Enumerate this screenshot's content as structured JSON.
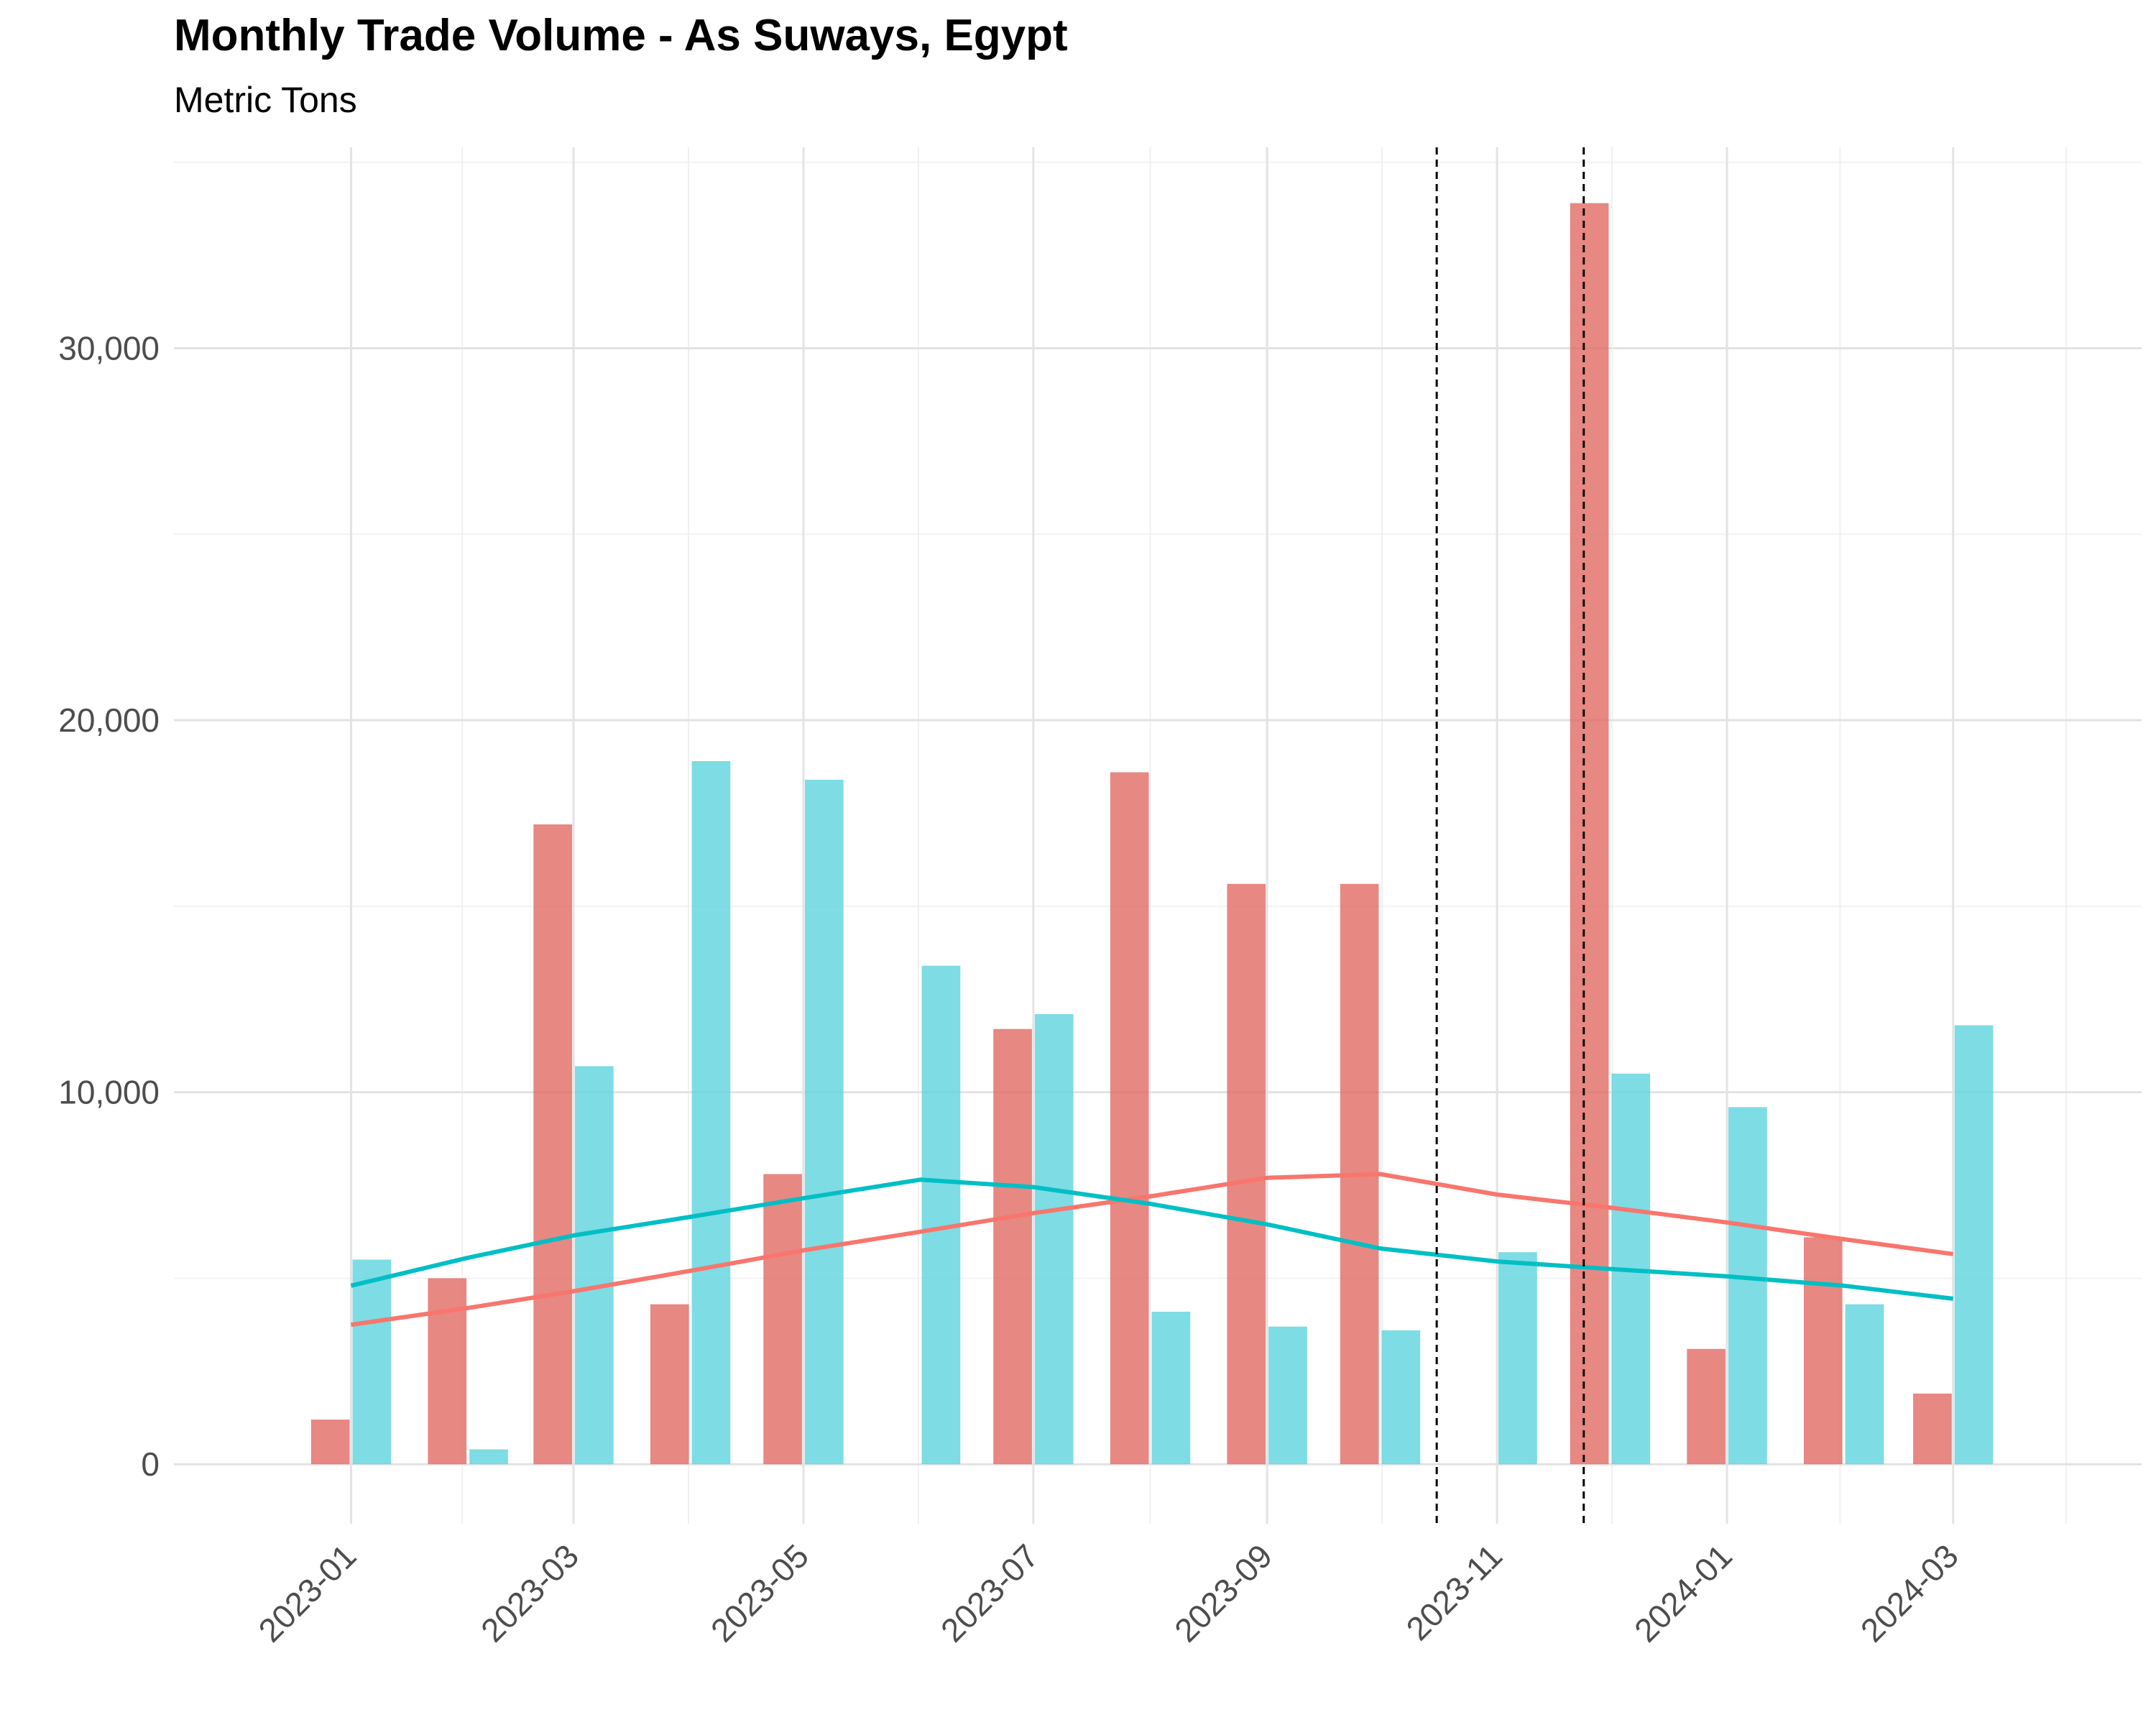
{
  "chart_data": {
    "type": "bar",
    "title": "Monthly Trade Volume - As Suways, Egypt",
    "subtitle": "Metric Tons",
    "xlabel": "",
    "ylabel": "",
    "x_ticks": [
      "2023-01",
      "2023-03",
      "2023-05",
      "2023-07",
      "2023-09",
      "2023-11",
      "2024-01",
      "2024-03"
    ],
    "y_ticks": [
      0,
      10000,
      20000,
      30000
    ],
    "y_tick_labels": [
      "0",
      "10,000",
      "20,000",
      "30,000"
    ],
    "ylim": [
      -1600,
      35400
    ],
    "xlim": [
      "2022-11-15",
      "2024-04-20"
    ],
    "grid": true,
    "legend": "none",
    "bar_width_days": 11,
    "series": [
      {
        "color": "#e06760",
        "bar_offset_days": -5.5,
        "values": [
          {
            "x": "2023-01-01",
            "y": 1200
          },
          {
            "x": "2023-02-01",
            "y": 5000
          },
          {
            "x": "2023-03-01",
            "y": 17200
          },
          {
            "x": "2023-04-01",
            "y": 4300
          },
          {
            "x": "2023-05-01",
            "y": 7800
          },
          {
            "x": "2023-07-01",
            "y": 11700
          },
          {
            "x": "2023-08-01",
            "y": 18600
          },
          {
            "x": "2023-09-01",
            "y": 15600
          },
          {
            "x": "2023-10-01",
            "y": 15600
          },
          {
            "x": "2023-12-01",
            "y": 33900
          },
          {
            "x": "2024-01-01",
            "y": 3100
          },
          {
            "x": "2024-02-01",
            "y": 6100
          },
          {
            "x": "2024-03-01",
            "y": 1900
          }
        ]
      },
      {
        "color": "#5ad2dc",
        "bar_offset_days": 5.5,
        "values": [
          {
            "x": "2023-01-01",
            "y": 5500
          },
          {
            "x": "2023-02-01",
            "y": 400
          },
          {
            "x": "2023-03-01",
            "y": 10700
          },
          {
            "x": "2023-04-01",
            "y": 18900
          },
          {
            "x": "2023-05-01",
            "y": 18400
          },
          {
            "x": "2023-06-01",
            "y": 13400
          },
          {
            "x": "2023-07-01",
            "y": 12100
          },
          {
            "x": "2023-08-01",
            "y": 4100
          },
          {
            "x": "2023-09-01",
            "y": 3700
          },
          {
            "x": "2023-10-01",
            "y": 3600
          },
          {
            "x": "2023-11-01",
            "y": 5700
          },
          {
            "x": "2023-12-01",
            "y": 10500
          },
          {
            "x": "2024-01-01",
            "y": 9600
          },
          {
            "x": "2024-02-01",
            "y": 4300
          },
          {
            "x": "2024-03-01",
            "y": 11800
          }
        ]
      }
    ],
    "trend_lines": [
      {
        "color": "#f8766d",
        "points": [
          {
            "x": "2023-01-01",
            "y": 3750
          },
          {
            "x": "2023-02-01",
            "y": 4200
          },
          {
            "x": "2023-03-01",
            "y": 4650
          },
          {
            "x": "2023-04-01",
            "y": 5200
          },
          {
            "x": "2023-05-01",
            "y": 5750
          },
          {
            "x": "2023-06-01",
            "y": 6250
          },
          {
            "x": "2023-07-01",
            "y": 6750
          },
          {
            "x": "2023-08-01",
            "y": 7200
          },
          {
            "x": "2023-09-01",
            "y": 7700
          },
          {
            "x": "2023-10-01",
            "y": 7800
          },
          {
            "x": "2023-11-01",
            "y": 7250
          },
          {
            "x": "2023-12-01",
            "y": 6900
          },
          {
            "x": "2024-01-01",
            "y": 6500
          },
          {
            "x": "2024-02-01",
            "y": 6050
          },
          {
            "x": "2024-03-01",
            "y": 5650
          }
        ]
      },
      {
        "color": "#00bfc4",
        "points": [
          {
            "x": "2023-01-01",
            "y": 4800
          },
          {
            "x": "2023-02-01",
            "y": 5550
          },
          {
            "x": "2023-03-01",
            "y": 6150
          },
          {
            "x": "2023-04-01",
            "y": 6650
          },
          {
            "x": "2023-05-01",
            "y": 7150
          },
          {
            "x": "2023-06-01",
            "y": 7650
          },
          {
            "x": "2023-07-01",
            "y": 7450
          },
          {
            "x": "2023-08-01",
            "y": 7000
          },
          {
            "x": "2023-09-01",
            "y": 6450
          },
          {
            "x": "2023-10-01",
            "y": 5800
          },
          {
            "x": "2023-11-01",
            "y": 5450
          },
          {
            "x": "2023-12-01",
            "y": 5250
          },
          {
            "x": "2024-01-01",
            "y": 5050
          },
          {
            "x": "2024-02-01",
            "y": 4800
          },
          {
            "x": "2024-03-01",
            "y": 4450
          }
        ]
      }
    ],
    "vertical_reference_lines": [
      "2023-10-16",
      "2023-11-24"
    ]
  }
}
